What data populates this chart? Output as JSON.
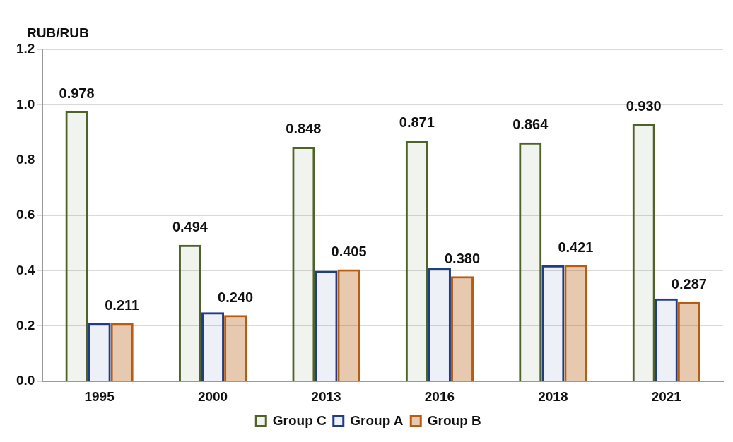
{
  "chart_data": {
    "type": "bar",
    "ylabel": "RUB/RUB",
    "categories": [
      "1995",
      "2000",
      "2013",
      "2016",
      "2018",
      "2021"
    ],
    "series": [
      {
        "name": "Group C",
        "color": "#4f6228",
        "values": [
          0.978,
          0.494,
          0.848,
          0.871,
          0.864,
          0.93
        ],
        "value_labels": [
          "0.978",
          "0.494",
          "0.848",
          "0.871",
          "0.864",
          "0.930"
        ]
      },
      {
        "name": "Group A",
        "color": "#1f3c88",
        "values": [
          0.21,
          0.25,
          0.4,
          0.41,
          0.42,
          0.3
        ]
      },
      {
        "name": "Group B",
        "color": "#b85c12",
        "values": [
          0.211,
          0.24,
          0.405,
          0.38,
          0.421,
          0.287
        ],
        "value_labels": [
          "0.211",
          "0.240",
          "0.405",
          "0.380",
          "0.421",
          "0.287"
        ]
      }
    ],
    "ylim": [
      0,
      1.2
    ],
    "yticks": [
      {
        "value": 0,
        "label": "0.0"
      },
      {
        "value": 0.2,
        "label": "0.2"
      },
      {
        "value": 0.4,
        "label": "0.4"
      },
      {
        "value": 0.6,
        "label": "0.6"
      },
      {
        "value": 0.8,
        "label": "0.8"
      },
      {
        "value": 1,
        "label": "1.0"
      },
      {
        "value": 1.2,
        "label": "1.2"
      }
    ],
    "grid": "y",
    "legend": "bottom"
  }
}
